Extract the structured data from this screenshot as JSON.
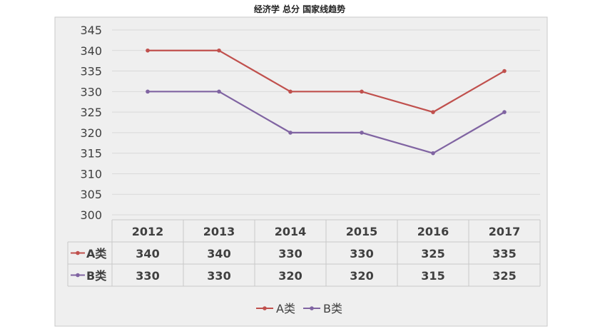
{
  "chart_data": {
    "type": "line",
    "title": "经济学 总分 国家线趋势",
    "categories": [
      "2012",
      "2013",
      "2014",
      "2015",
      "2016",
      "2017"
    ],
    "series": [
      {
        "name": "A类",
        "values": [
          340,
          340,
          330,
          330,
          325,
          335
        ],
        "color": "#c0504d"
      },
      {
        "name": "B类",
        "values": [
          330,
          330,
          320,
          320,
          315,
          325
        ],
        "color": "#8064a2"
      }
    ],
    "ylim": [
      300,
      345
    ],
    "y_ticks": [
      "345",
      "340",
      "335",
      "330",
      "325",
      "320",
      "315",
      "310",
      "305",
      "300"
    ],
    "grid": true,
    "legend": "bottom",
    "data_table": true
  },
  "colors": {
    "plot_background": "#efefef",
    "gridline": "#d9d9d9",
    "border": "#c8c8c8",
    "text": "#404040"
  }
}
